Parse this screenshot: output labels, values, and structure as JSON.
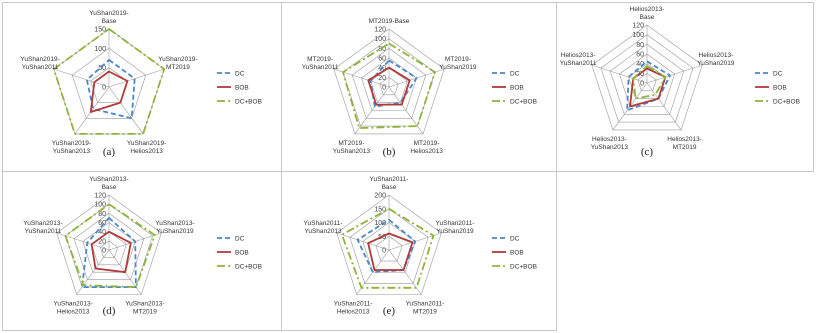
{
  "colors": {
    "DC": "#4a86c8",
    "BOB": "#b03a3a",
    "DC+BOB": "#8db33a",
    "grid": "#9a9a9a"
  },
  "chart_data": [
    {
      "type": "radar",
      "panel_label": "(a)",
      "axes": [
        "YuShan2019-\nBase",
        "YuShan2019-\nMT2019",
        "YuShan2019-\nHelios2013",
        "YuShan2019-\nYuShan2013",
        "YuShan2019-\nYuShan2011"
      ],
      "ticks": [
        "0",
        "50",
        "100",
        "150"
      ],
      "rmax": 150,
      "series": [
        {
          "name": "DC",
          "values": [
            70,
            70,
            100,
            70,
            60
          ]
        },
        {
          "name": "BOB",
          "values": [
            40,
            50,
            50,
            80,
            40
          ]
        },
        {
          "name": "DC+BOB",
          "values": [
            150,
            150,
            150,
            150,
            150
          ]
        }
      ]
    },
    {
      "type": "radar",
      "panel_label": "(b)",
      "axes": [
        "MT2019-Base",
        "MT2019-\nYuShan2019",
        "MT2019-\nHelios2013",
        "MT2019-\nYuShan2013",
        "MT2019-\nYuShan2011"
      ],
      "ticks": [
        "0",
        "20",
        "40",
        "60",
        "80",
        "100",
        "120"
      ],
      "rmax": 120,
      "series": [
        {
          "name": "DC",
          "values": [
            55,
            60,
            40,
            50,
            40
          ]
        },
        {
          "name": "BOB",
          "values": [
            40,
            45,
            45,
            45,
            45
          ]
        },
        {
          "name": "DC+BOB",
          "values": [
            90,
            100,
            100,
            105,
            100
          ]
        }
      ]
    },
    {
      "type": "radar",
      "panel_label": "(c)",
      "axes": [
        "Helios2013-\nBase",
        "Helios2013-\nYuShan2019",
        "Helios2013-\nMT2019",
        "Helios2013-\nYuShan2013",
        "Helios2013-\nYuShan2011"
      ],
      "ticks": [
        "0",
        "20",
        "40",
        "60",
        "80",
        "100",
        "120"
      ],
      "rmax": 120,
      "series": [
        {
          "name": "DC",
          "values": [
            45,
            50,
            40,
            70,
            40
          ]
        },
        {
          "name": "BOB",
          "values": [
            30,
            40,
            40,
            60,
            30
          ]
        },
        {
          "name": "DC+BOB",
          "values": [
            35,
            40,
            30,
            40,
            30
          ]
        }
      ]
    },
    {
      "type": "radar",
      "panel_label": "(d)",
      "axes": [
        "YuShan2013-\nBase",
        "YuShan2013-\nYuShan2019",
        "YuShan2013-\nMT2019",
        "YuShan2013-\nHelios2013",
        "YuShan2013-\nYuShan2011"
      ],
      "ticks": [
        "0",
        "20",
        "40",
        "60",
        "80",
        "100",
        "120"
      ],
      "rmax": 120,
      "series": [
        {
          "name": "DC",
          "values": [
            70,
            60,
            100,
            100,
            50
          ]
        },
        {
          "name": "BOB",
          "values": [
            40,
            50,
            60,
            50,
            40
          ]
        },
        {
          "name": "DC+BOB",
          "values": [
            100,
            105,
            100,
            95,
            100
          ]
        }
      ]
    },
    {
      "type": "radar",
      "panel_label": "(e)",
      "axes": [
        "YuShan2011-\nBase",
        "YuShan2011-\nYuShan2019",
        "YuShan2011-\nMT2019",
        "YuShan2011-\nHelios2013",
        "YuShan2011-\nYuShan2013"
      ],
      "ticks": [
        "0",
        "50",
        "100",
        "150",
        "200"
      ],
      "rmax": 200,
      "series": [
        {
          "name": "DC",
          "values": [
            110,
            100,
            90,
            100,
            120
          ]
        },
        {
          "name": "BOB",
          "values": [
            60,
            90,
            90,
            90,
            80
          ]
        },
        {
          "name": "DC+BOB",
          "values": [
            150,
            170,
            170,
            170,
            180
          ]
        }
      ]
    }
  ]
}
